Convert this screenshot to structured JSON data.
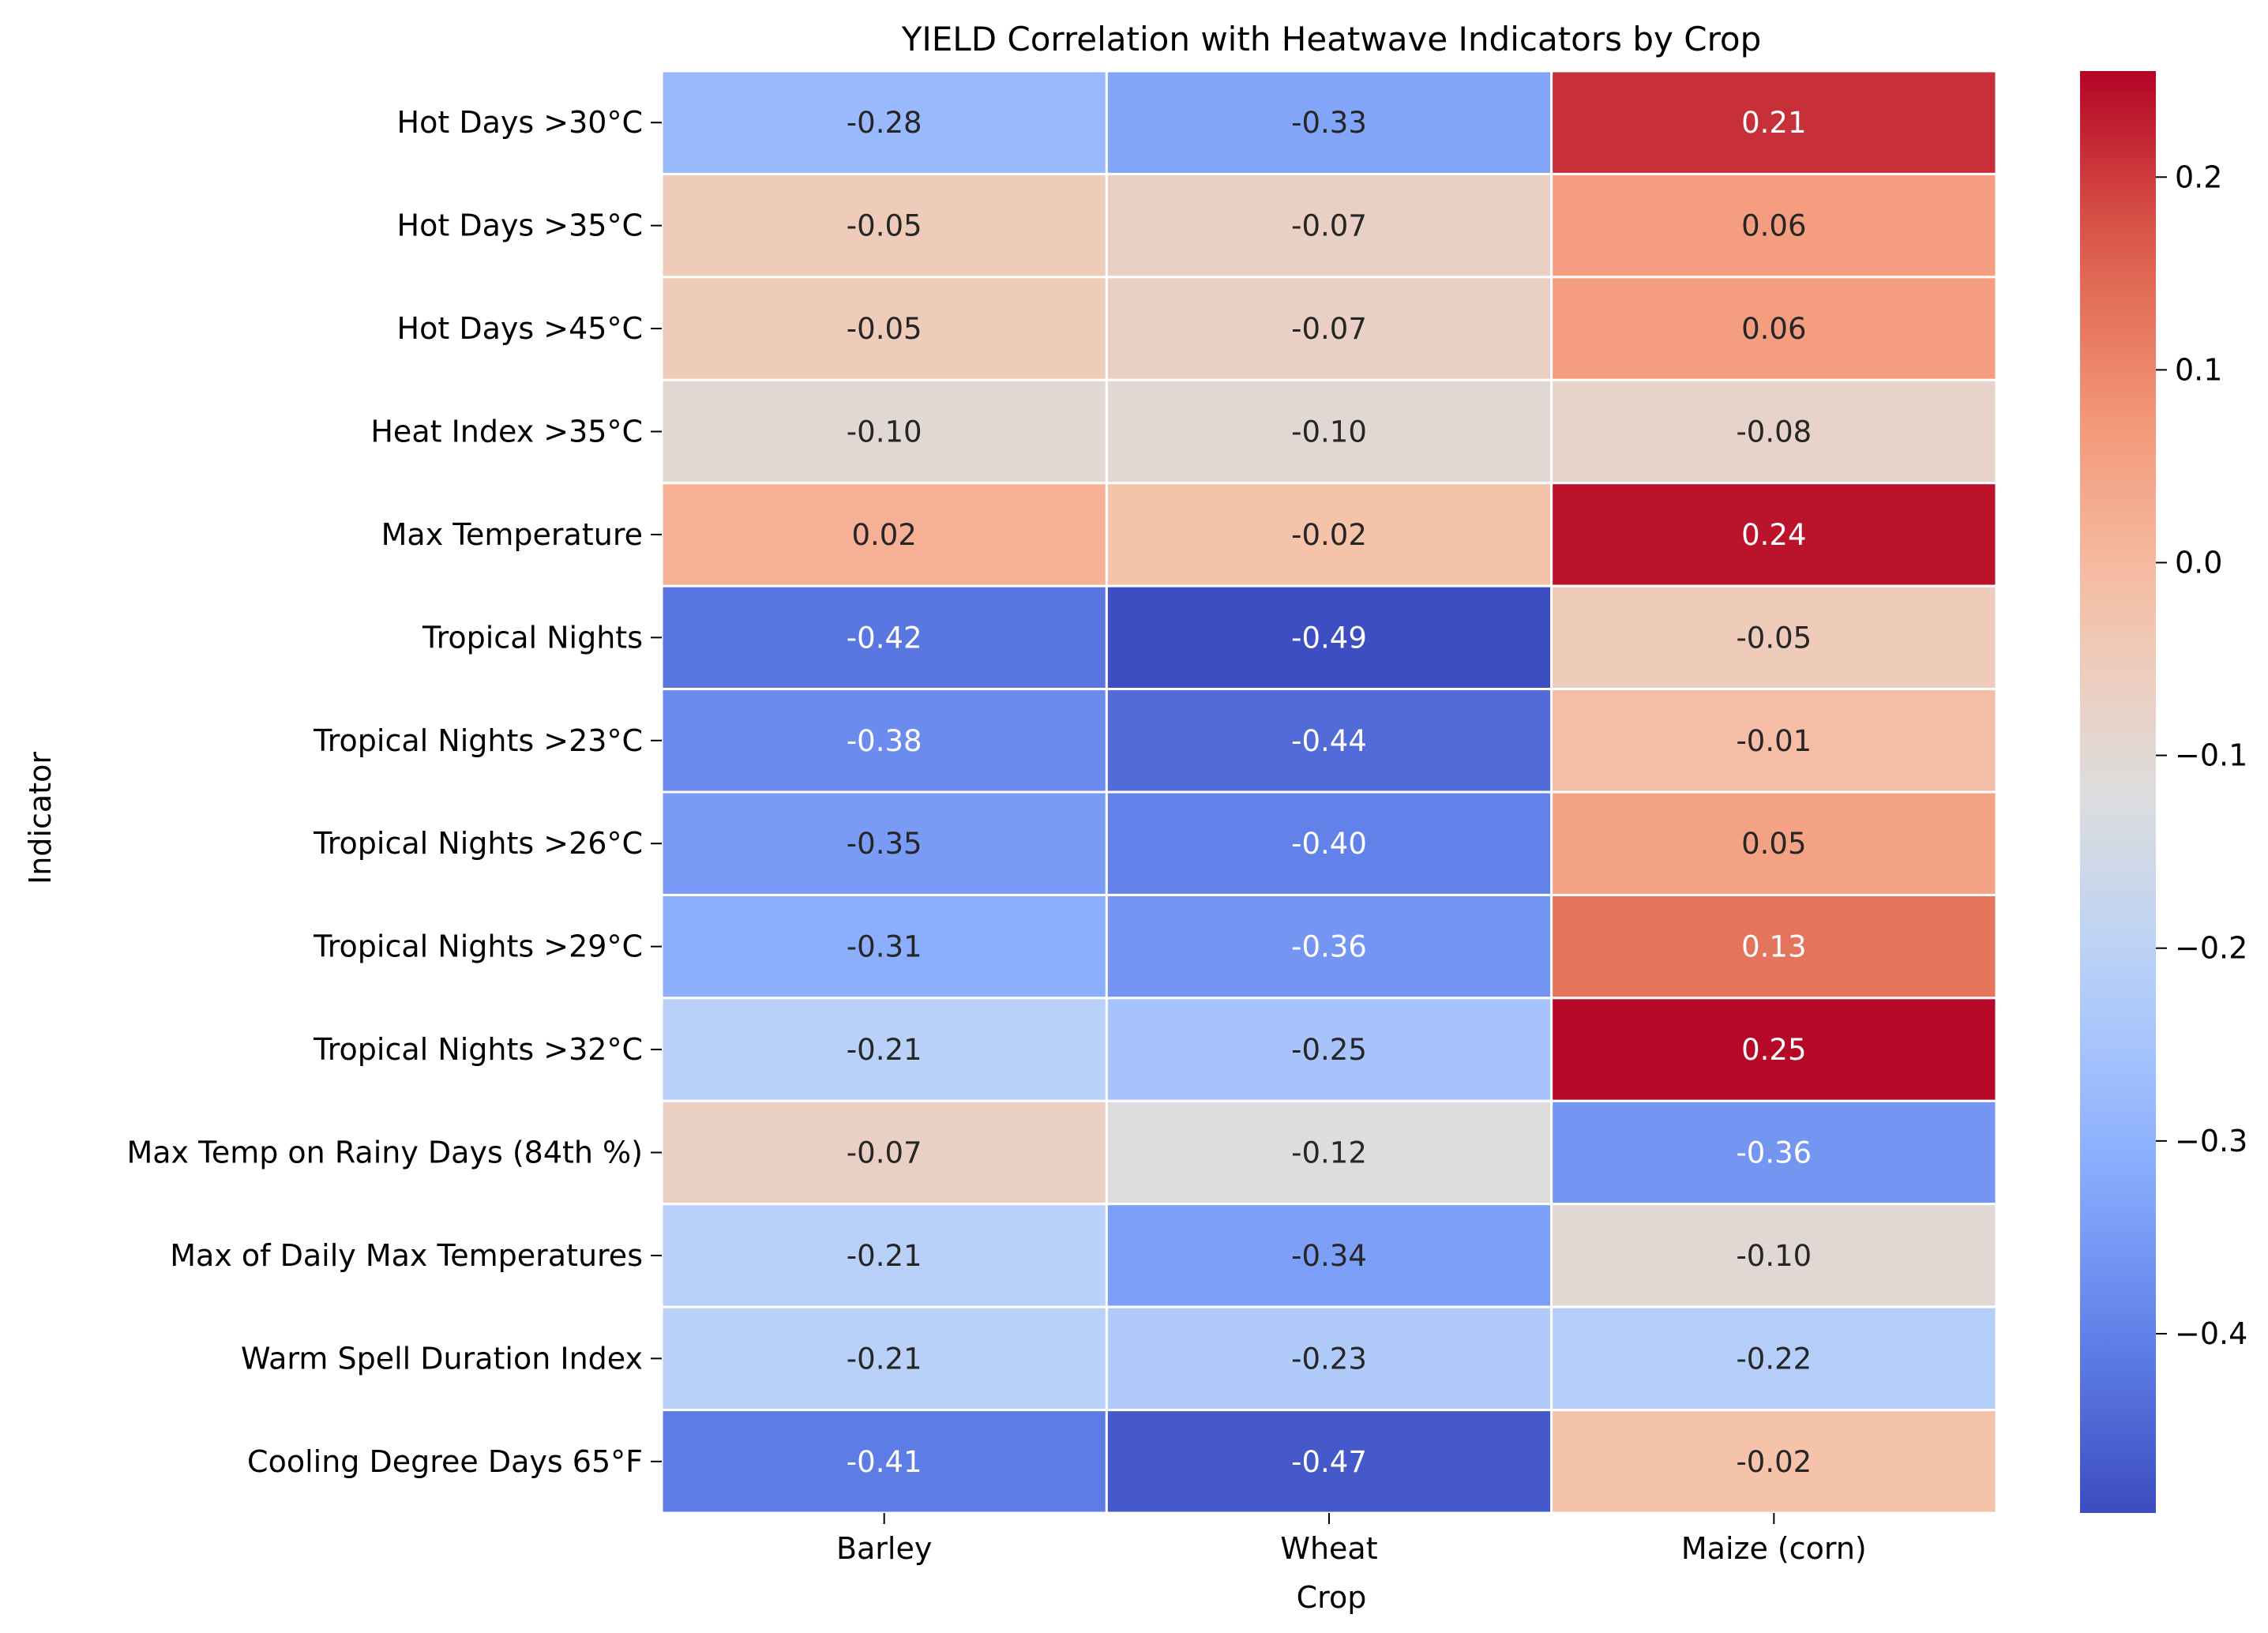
{
  "chart_data": {
    "type": "heatmap",
    "title": "YIELD Correlation with Heatwave Indicators by Crop",
    "xlabel": "Crop",
    "ylabel": "Indicator",
    "columns": [
      "Barley",
      "Wheat",
      "Maize (corn)"
    ],
    "rows": [
      "Hot Days >30°C",
      "Hot Days >35°C",
      "Hot Days >45°C",
      "Heat Index >35°C",
      "Max Temperature",
      "Tropical Nights",
      "Tropical Nights >23°C",
      "Tropical Nights >26°C",
      "Tropical Nights >29°C",
      "Tropical Nights >32°C",
      "Max Temp on Rainy Days (84th %)",
      "Max of Daily Max Temperatures",
      "Warm Spell Duration Index",
      "Cooling Degree Days 65°F"
    ],
    "values": [
      [
        -0.28,
        -0.33,
        0.21
      ],
      [
        -0.05,
        -0.07,
        0.06
      ],
      [
        -0.05,
        -0.07,
        0.06
      ],
      [
        -0.1,
        -0.1,
        -0.08
      ],
      [
        0.02,
        -0.02,
        0.24
      ],
      [
        -0.42,
        -0.49,
        -0.05
      ],
      [
        -0.38,
        -0.44,
        -0.01
      ],
      [
        -0.35,
        -0.4,
        0.05
      ],
      [
        -0.31,
        -0.36,
        0.13
      ],
      [
        -0.21,
        -0.25,
        0.25
      ],
      [
        -0.07,
        -0.12,
        -0.36
      ],
      [
        -0.21,
        -0.34,
        -0.1
      ],
      [
        -0.21,
        -0.23,
        -0.22
      ],
      [
        -0.41,
        -0.47,
        -0.02
      ]
    ],
    "colormap": "coolwarm",
    "vmin": -0.493,
    "vmax": 0.255,
    "colorbar_ticks": [
      0.2,
      0.1,
      0.0,
      -0.1,
      -0.2,
      -0.3,
      -0.4
    ],
    "colorbar_tick_labels": [
      "0.2",
      "0.1",
      "0.0",
      "−0.1",
      "−0.2",
      "−0.3",
      "−0.4"
    ],
    "legend": "colorbar-right",
    "grid": false
  }
}
